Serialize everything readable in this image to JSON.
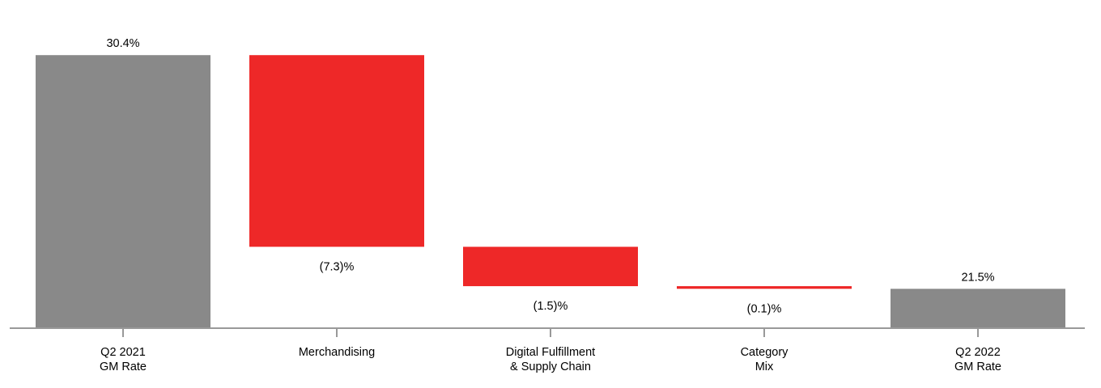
{
  "chart_data": {
    "type": "waterfall",
    "title": "",
    "xlabel": "",
    "ylabel": "",
    "ylim": [
      20,
      32.5
    ],
    "grid": false,
    "categories": [
      [
        "Q2 2021",
        "GM Rate"
      ],
      [
        "Merchandising"
      ],
      [
        "Digital Fulfillment",
        "& Supply Chain"
      ],
      [
        "Category",
        "Mix"
      ],
      [
        "Q2 2022",
        "GM Rate"
      ]
    ],
    "values": [
      30.4,
      -7.3,
      -1.5,
      -0.1,
      21.5
    ],
    "kinds": [
      "total",
      "delta",
      "delta",
      "delta",
      "total"
    ],
    "data_labels": [
      "30.4%",
      "(7.3)%",
      "(1.5)%",
      "(0.1)%",
      "21.5%"
    ],
    "colors": {
      "total": "#898989",
      "decrease": "#ee2828",
      "axis": "#999999"
    }
  }
}
